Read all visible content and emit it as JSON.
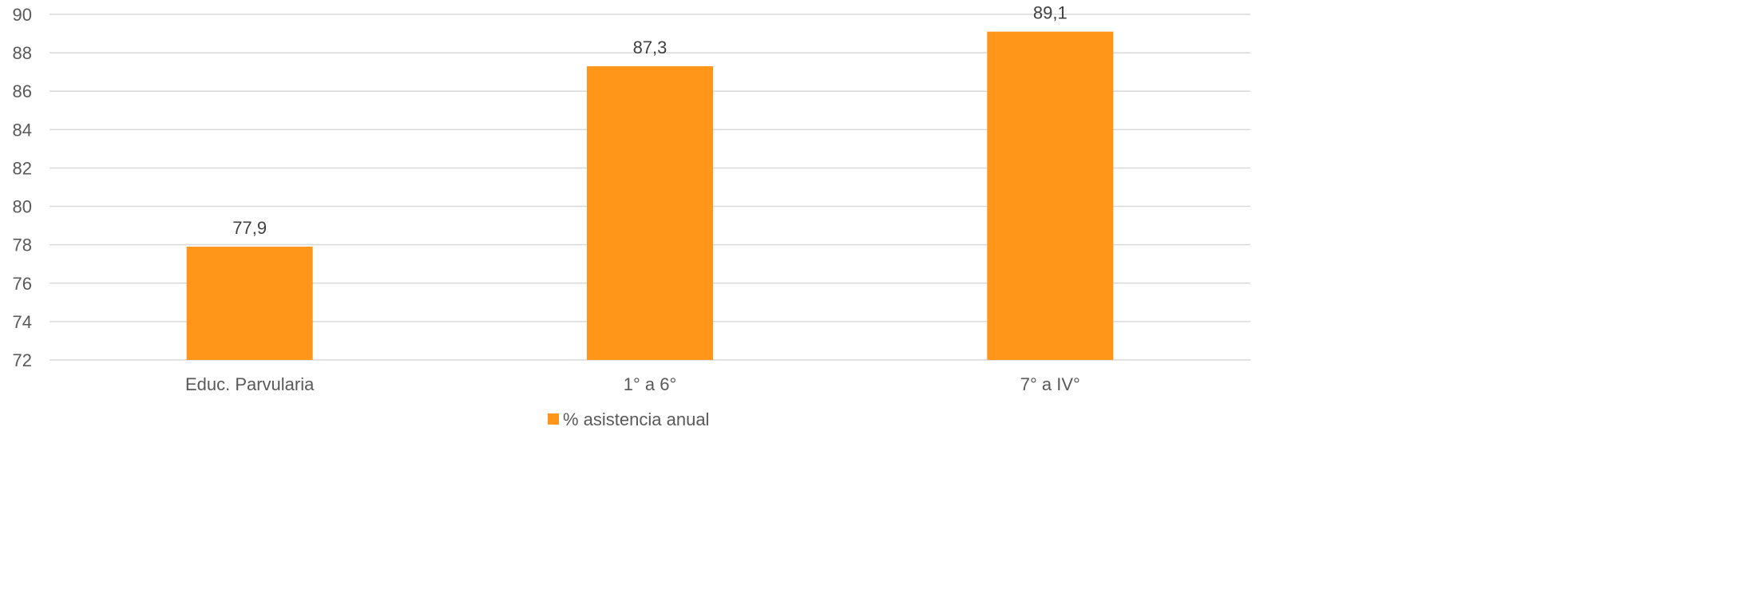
{
  "chart_data": {
    "type": "bar",
    "categories": [
      "Educ. Parvularia",
      "1° a 6°",
      "7° a IV°"
    ],
    "series": [
      {
        "name": "% asistencia anual",
        "values": [
          77.9,
          87.3,
          89.1
        ],
        "color": "#FF9519"
      }
    ],
    "data_labels": [
      "77,9",
      "87,3",
      "89,1"
    ],
    "yticks": [
      "72",
      "74",
      "76",
      "78",
      "80",
      "82",
      "84",
      "86",
      "88",
      "90"
    ],
    "ylim": [
      72,
      90
    ],
    "grid": true,
    "legend_position": "bottom",
    "gridline_color": "#D9D9D9"
  }
}
